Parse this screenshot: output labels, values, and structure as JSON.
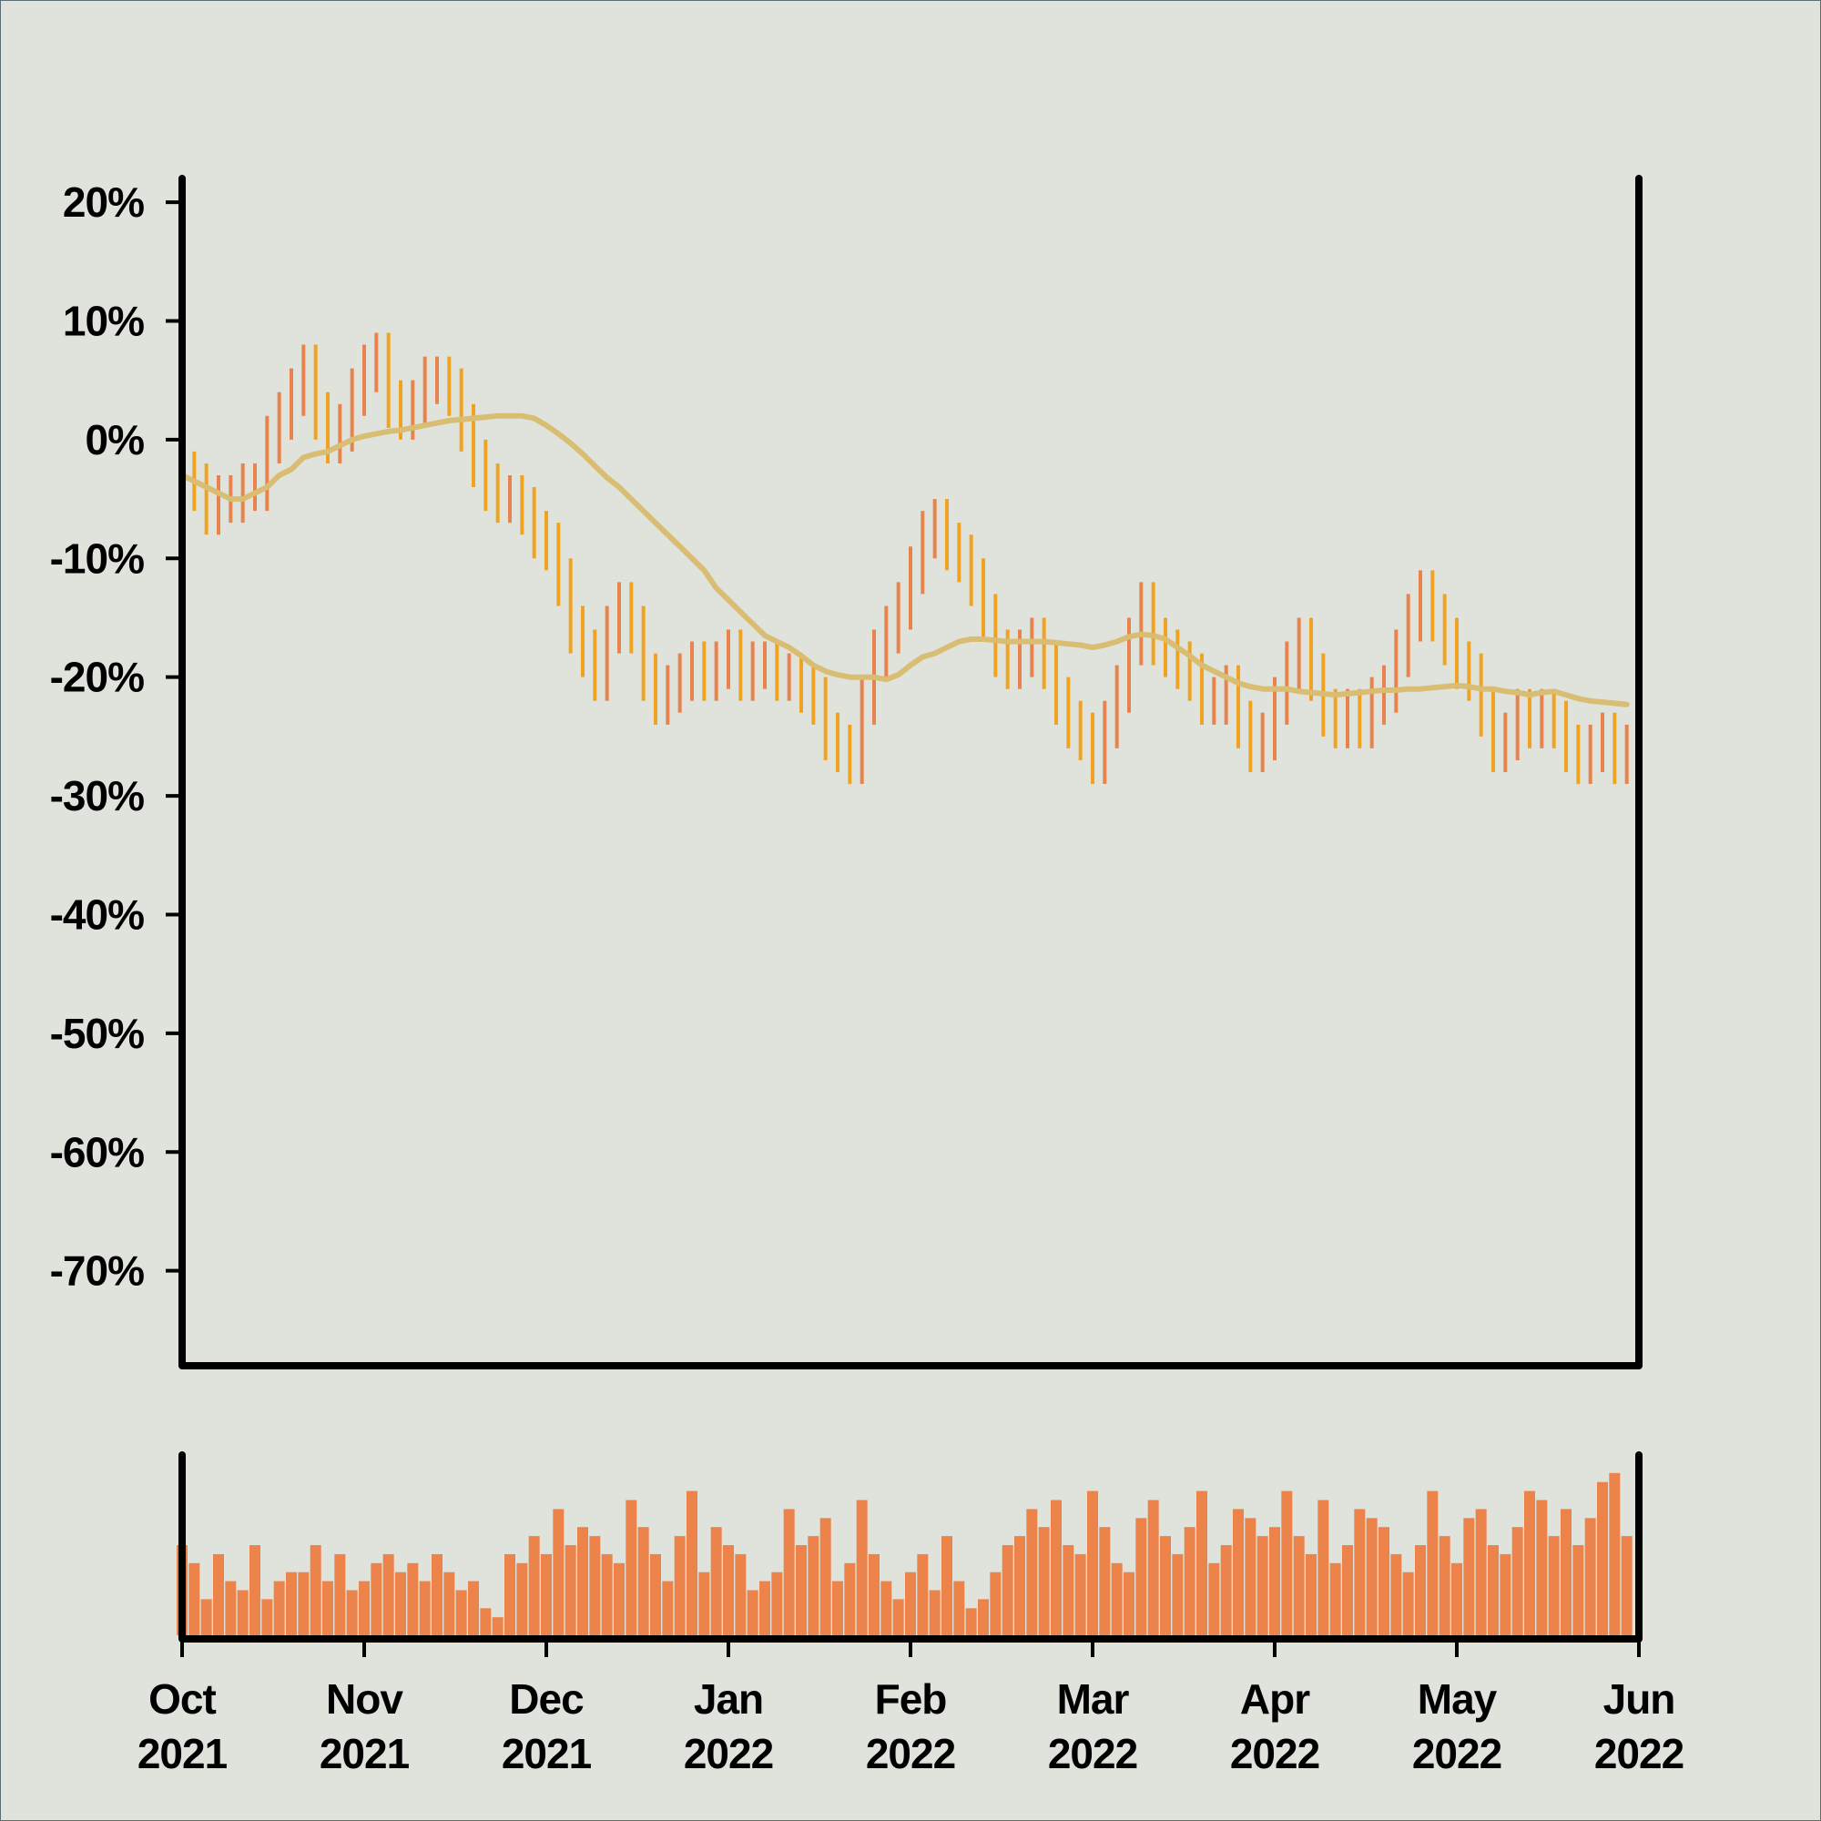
{
  "chart_data": {
    "type": "ohlc",
    "x": [
      0,
      2,
      4,
      6,
      8,
      10,
      12,
      14,
      16,
      18,
      20,
      22,
      24,
      26,
      28,
      30,
      32,
      34,
      36,
      38,
      40,
      42,
      44,
      46,
      48,
      50,
      52,
      54,
      56,
      58,
      60,
      62,
      64,
      66,
      68,
      70,
      72,
      74,
      76,
      78,
      80,
      82,
      84,
      86,
      88,
      90,
      92,
      94,
      96,
      98,
      100,
      102,
      104,
      106,
      108,
      110,
      112,
      114,
      116,
      118,
      120,
      122,
      124,
      126,
      128,
      130,
      132,
      134,
      136,
      138,
      140,
      142,
      144,
      146,
      148,
      150,
      152,
      154,
      156,
      158,
      160,
      162,
      164,
      166,
      168,
      170,
      172,
      174,
      176,
      178,
      180,
      182,
      184,
      186,
      188,
      190,
      192,
      194,
      196,
      198,
      200,
      202,
      204,
      206,
      208,
      210,
      212,
      214,
      216,
      218,
      220,
      222,
      224,
      226,
      228,
      230,
      232,
      234,
      236,
      238
    ],
    "high": [
      1,
      -1,
      -2,
      -3,
      -3,
      -2,
      -2,
      2,
      4,
      6,
      8,
      8,
      4,
      3,
      6,
      8,
      9,
      9,
      5,
      5,
      7,
      7,
      7,
      6,
      3,
      0,
      -2,
      -3,
      -3,
      -4,
      -6,
      -7,
      -10,
      -14,
      -16,
      -14,
      -12,
      -12,
      -14,
      -18,
      -19,
      -18,
      -17,
      -17,
      -17,
      -16,
      -16,
      -17,
      -17,
      -17,
      -18,
      -18,
      -19,
      -20,
      -23,
      -24,
      -20,
      -16,
      -14,
      -12,
      -9,
      -6,
      -5,
      -5,
      -7,
      -8,
      -10,
      -13,
      -16,
      -16,
      -15,
      -15,
      -17,
      -20,
      -22,
      -23,
      -22,
      -19,
      -15,
      -12,
      -12,
      -15,
      -16,
      -17,
      -18,
      -20,
      -19,
      -19,
      -22,
      -23,
      -20,
      -17,
      -15,
      -15,
      -18,
      -21,
      -21,
      -21,
      -20,
      -19,
      -16,
      -13,
      -11,
      -11,
      -13,
      -15,
      -17,
      -18,
      -21,
      -23,
      -21,
      -21,
      -21,
      -21,
      -22,
      -24,
      -24,
      -23,
      -23,
      -24
    ],
    "low": [
      -5,
      -6,
      -8,
      -8,
      -7,
      -7,
      -6,
      -6,
      -2,
      0,
      2,
      0,
      -2,
      -2,
      -1,
      2,
      4,
      1,
      0,
      0,
      1,
      3,
      2,
      -1,
      -4,
      -6,
      -7,
      -7,
      -8,
      -10,
      -11,
      -14,
      -18,
      -20,
      -22,
      -22,
      -18,
      -18,
      -22,
      -24,
      -24,
      -23,
      -22,
      -22,
      -22,
      -21,
      -22,
      -22,
      -21,
      -22,
      -22,
      -23,
      -24,
      -27,
      -28,
      -29,
      -29,
      -24,
      -20,
      -18,
      -16,
      -13,
      -10,
      -11,
      -12,
      -14,
      -17,
      -20,
      -21,
      -21,
      -20,
      -21,
      -24,
      -26,
      -27,
      -29,
      -29,
      -26,
      -23,
      -19,
      -19,
      -20,
      -21,
      -22,
      -24,
      -24,
      -24,
      -26,
      -28,
      -28,
      -27,
      -24,
      -21,
      -22,
      -25,
      -26,
      -26,
      -26,
      -26,
      -24,
      -23,
      -20,
      -17,
      -17,
      -19,
      -21,
      -22,
      -25,
      -28,
      -28,
      -27,
      -26,
      -26,
      -26,
      -28,
      -29,
      -29,
      -28,
      -29,
      -29
    ],
    "close": [
      -3,
      -4,
      -6,
      -5,
      -5,
      -4,
      -4,
      0,
      2,
      4,
      6,
      2,
      0,
      1,
      4,
      6,
      7,
      3,
      2,
      3,
      5,
      5,
      4,
      1,
      -2,
      -4,
      -5,
      -5,
      -6,
      -8,
      -9,
      -12,
      -16,
      -18,
      -20,
      -16,
      -14,
      -16,
      -20,
      -22,
      -21,
      -20,
      -19,
      -20,
      -19,
      -18,
      -20,
      -19,
      -19,
      -20,
      -20,
      -21,
      -22,
      -25,
      -26,
      -27,
      -22,
      -18,
      -16,
      -14,
      -11,
      -8,
      -7,
      -9,
      -10,
      -12,
      -15,
      -18,
      -19,
      -18,
      -17,
      -19,
      -22,
      -24,
      -25,
      -27,
      -24,
      -21,
      -17,
      -14,
      -17,
      -18,
      -19,
      -20,
      -22,
      -22,
      -21,
      -24,
      -26,
      -25,
      -22,
      -19,
      -17,
      -20,
      -23,
      -24,
      -23,
      -24,
      -22,
      -21,
      -18,
      -15,
      -13,
      -15,
      -17,
      -19,
      -20,
      -23,
      -26,
      -25,
      -23,
      -24,
      -23,
      -24,
      -26,
      -27,
      -26,
      -25,
      -27,
      -26
    ],
    "up_color": "#e8834e",
    "down_color": "#f0a323",
    "ma": {
      "color": "#d8bd72",
      "values": [
        -3,
        -3.5,
        -4,
        -4.5,
        -5,
        -5,
        -4.5,
        -4,
        -3,
        -2.5,
        -1.5,
        -1.2,
        -1,
        -0.5,
        0,
        0.3,
        0.5,
        0.7,
        0.8,
        1,
        1.2,
        1.4,
        1.6,
        1.7,
        1.8,
        1.9,
        2,
        2,
        2,
        1.8,
        1.2,
        0.5,
        -0.3,
        -1.2,
        -2.2,
        -3.2,
        -4,
        -5,
        -6,
        -7,
        -8,
        -9,
        -10,
        -11,
        -12.5,
        -13.5,
        -14.5,
        -15.5,
        -16.5,
        -17,
        -17.5,
        -18.2,
        -19,
        -19.5,
        -19.8,
        -20,
        -20,
        -20,
        -20.2,
        -19.8,
        -19,
        -18.3,
        -18,
        -17.5,
        -17,
        -16.8,
        -16.8,
        -16.9,
        -17,
        -17,
        -17,
        -17,
        -17.1,
        -17.2,
        -17.3,
        -17.5,
        -17.3,
        -17,
        -16.6,
        -16.4,
        -16.5,
        -16.8,
        -17.5,
        -18.2,
        -19,
        -19.5,
        -20,
        -20.5,
        -20.8,
        -21,
        -21,
        -21,
        -21.2,
        -21.3,
        -21.4,
        -21.5,
        -21.4,
        -21.3,
        -21.2,
        -21.1,
        -21.1,
        -21,
        -21,
        -20.9,
        -20.8,
        -20.7,
        -20.8,
        -21,
        -21,
        -21.2,
        -21.3,
        -21.5,
        -21.3,
        -21.2,
        -21.5,
        -21.8,
        -22,
        -22.1,
        -22.2,
        -22.3
      ]
    },
    "volume": {
      "color": "#ec834a",
      "ylim": [
        0,
        100
      ],
      "values": [
        50,
        40,
        20,
        45,
        30,
        25,
        50,
        20,
        30,
        35,
        35,
        50,
        30,
        45,
        25,
        30,
        40,
        45,
        35,
        40,
        30,
        45,
        35,
        25,
        30,
        15,
        10,
        45,
        40,
        55,
        45,
        70,
        50,
        60,
        55,
        45,
        40,
        75,
        60,
        45,
        30,
        55,
        80,
        35,
        60,
        50,
        45,
        25,
        30,
        35,
        70,
        50,
        55,
        65,
        30,
        40,
        75,
        45,
        30,
        20,
        35,
        45,
        25,
        55,
        30,
        15,
        20,
        35,
        50,
        55,
        70,
        60,
        75,
        50,
        45,
        80,
        60,
        40,
        35,
        65,
        75,
        55,
        45,
        60,
        80,
        40,
        50,
        70,
        65,
        55,
        60,
        80,
        55,
        45,
        75,
        40,
        50,
        70,
        65,
        60,
        45,
        35,
        50,
        80,
        55,
        40,
        65,
        70,
        50,
        45,
        60,
        80,
        75,
        55,
        70,
        50,
        65,
        85,
        90,
        55
      ]
    },
    "xlim": [
      0,
      240
    ],
    "xticks": [
      {
        "value": 0,
        "label": "Oct\n2021"
      },
      {
        "value": 30,
        "label": "Nov\n2021"
      },
      {
        "value": 60,
        "label": "Dec\n2021"
      },
      {
        "value": 90,
        "label": "Jan\n2022"
      },
      {
        "value": 120,
        "label": "Feb\n2022"
      },
      {
        "value": 150,
        "label": "Mar\n2022"
      },
      {
        "value": 180,
        "label": "Apr\n2022"
      },
      {
        "value": 210,
        "label": "May\n2022"
      },
      {
        "value": 240,
        "label": "Jun\n2022"
      }
    ],
    "ylim": [
      -78,
      22
    ],
    "yticks": [
      {
        "value": 20,
        "label": "20%"
      },
      {
        "value": 10,
        "label": "10%"
      },
      {
        "value": 0,
        "label": "0%"
      },
      {
        "value": -10,
        "label": "-10%"
      },
      {
        "value": -20,
        "label": "-20%"
      },
      {
        "value": -30,
        "label": "-30%"
      },
      {
        "value": -40,
        "label": "-40%"
      },
      {
        "value": -50,
        "label": "-50%"
      },
      {
        "value": -60,
        "label": "-60%"
      },
      {
        "value": -70,
        "label": "-70%"
      }
    ]
  }
}
